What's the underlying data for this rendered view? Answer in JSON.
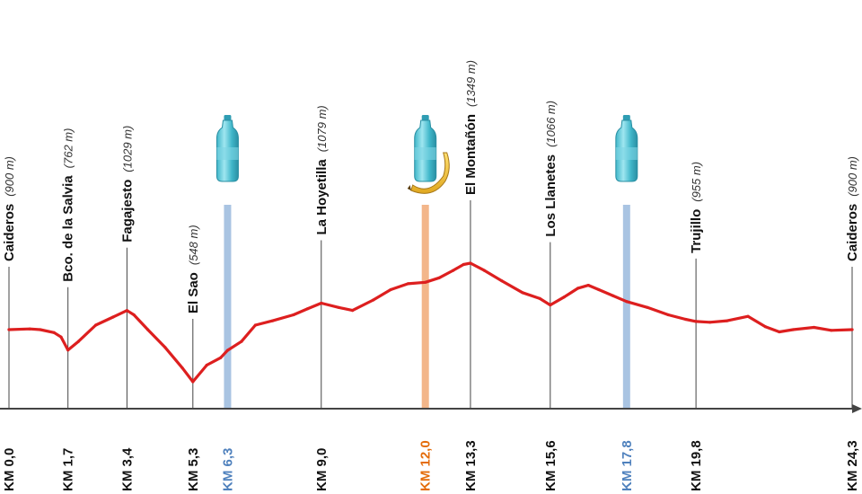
{
  "chart_data": {
    "type": "line",
    "title": "",
    "xlabel": "",
    "ylabel": "",
    "x_unit": "KM",
    "xlim": [
      0,
      24.3
    ],
    "ylim": [
      500,
      1400
    ],
    "grid": false,
    "colors": {
      "line": "#dd1f1f",
      "axis": "#444444",
      "water": "#a9c4e2",
      "food": "#f3b68a",
      "water_label": "#4f81bd",
      "food_label": "#e46c0a",
      "km_label": "#111111"
    },
    "series": [
      {
        "x": [
          0,
          0.6,
          0.9,
          1.3,
          1.5,
          1.7,
          2.0,
          2.5,
          3.0,
          3.4,
          3.6,
          4.0,
          4.5,
          5.0,
          5.3,
          5.7,
          6.1,
          6.3,
          6.7,
          7.1,
          7.6,
          8.2,
          8.6,
          9.0,
          9.5,
          9.9,
          10.5,
          11.0,
          11.5,
          12.0,
          12.4,
          12.8,
          13.1,
          13.3,
          13.7,
          14.2,
          14.8,
          15.3,
          15.6,
          16.0,
          16.4,
          16.7,
          17.0,
          17.4,
          17.8,
          18.4,
          19.0,
          19.5,
          19.8,
          20.2,
          20.7,
          21.3,
          21.8,
          22.2,
          22.6,
          23.2,
          23.7,
          24.3
        ],
        "y": [
          900,
          905,
          900,
          880,
          850,
          762,
          820,
          930,
          985,
          1029,
          1000,
          900,
          780,
          640,
          548,
          660,
          710,
          760,
          820,
          930,
          960,
          1000,
          1040,
          1079,
          1050,
          1030,
          1100,
          1170,
          1210,
          1220,
          1250,
          1300,
          1340,
          1349,
          1300,
          1230,
          1150,
          1110,
          1066,
          1120,
          1180,
          1200,
          1170,
          1130,
          1090,
          1050,
          1000,
          970,
          955,
          950,
          960,
          990,
          920,
          885,
          900,
          915,
          895,
          900
        ]
      }
    ],
    "waypoints": [
      {
        "km": 0.0,
        "km_label": "KM 0,0",
        "name": "Caideros",
        "elevation": "(900 m)"
      },
      {
        "km": 1.7,
        "km_label": "KM 1,7",
        "name": "Bco. de la Salvia",
        "elevation": "(762 m)"
      },
      {
        "km": 3.4,
        "km_label": "KM 3,4",
        "name": "Fagajesto",
        "elevation": "(1029 m)"
      },
      {
        "km": 5.3,
        "km_label": "KM 5,3",
        "name": "El Sao",
        "elevation": "(548 m)"
      },
      {
        "km": 9.0,
        "km_label": "KM 9,0",
        "name": "La Hoyetilla",
        "elevation": "(1079 m)"
      },
      {
        "km": 13.3,
        "km_label": "KM 13,3",
        "name": "El Montañón",
        "elevation": "(1349 m)"
      },
      {
        "km": 15.6,
        "km_label": "KM 15,6",
        "name": "Los Llanetes",
        "elevation": "(1066 m)"
      },
      {
        "km": 19.8,
        "km_label": "KM 19,8",
        "name": "Trujillo",
        "elevation": "(955 m)"
      },
      {
        "km": 24.3,
        "km_label": "KM 24,3",
        "name": "Caideros",
        "elevation": "(900 m)"
      }
    ],
    "supply_points": [
      {
        "km": 6.3,
        "km_label": "KM 6,3",
        "kind": "water",
        "icons": [
          "water-bottle-icon"
        ]
      },
      {
        "km": 12.0,
        "km_label": "KM 12,0",
        "kind": "food",
        "icons": [
          "water-bottle-icon",
          "banana-icon"
        ]
      },
      {
        "km": 17.8,
        "km_label": "KM 17,8",
        "kind": "water",
        "icons": [
          "water-bottle-icon"
        ]
      }
    ]
  }
}
